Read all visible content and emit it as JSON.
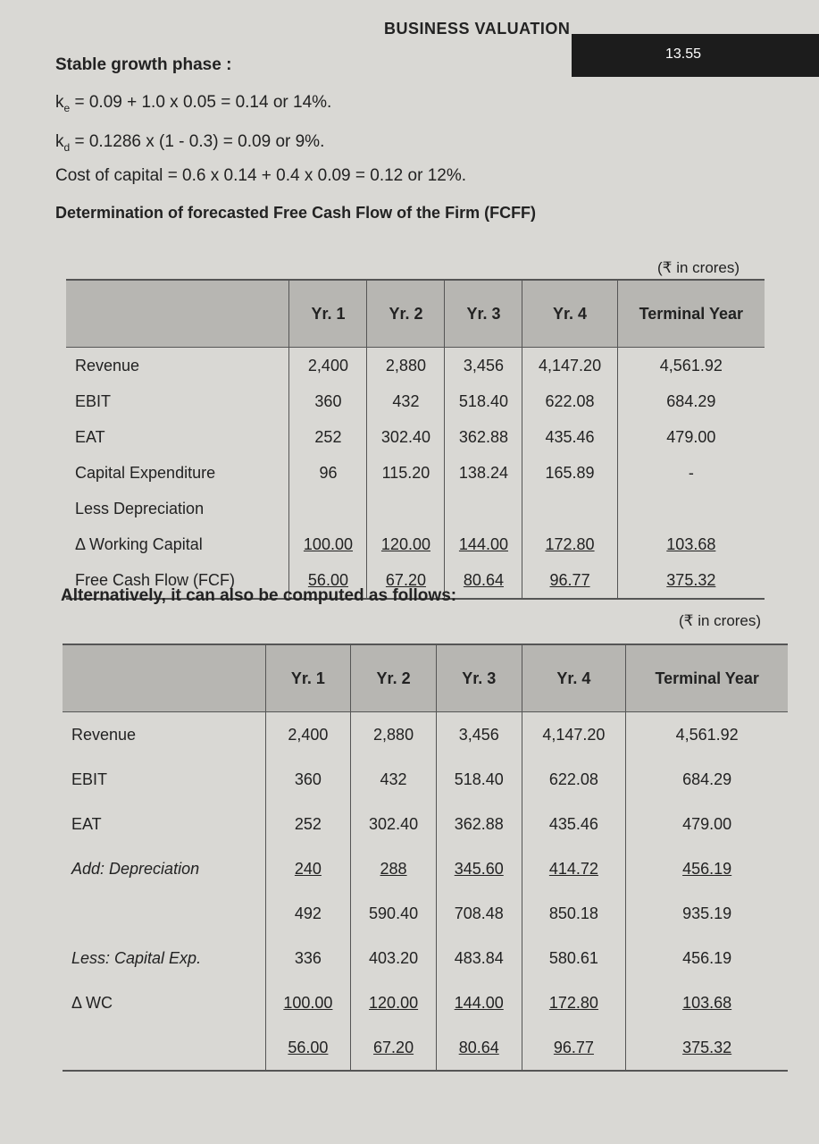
{
  "header": {
    "section": "BUSINESS VALUATION",
    "page_number": "13.55"
  },
  "phase_heading": "Stable growth phase :",
  "equations": [
    {
      "var": "k",
      "sub": "e",
      "rest": "= 0.09 + 1.0  x 0.05 = 0.14 or 14%."
    },
    {
      "var": "k",
      "sub": "d",
      "rest": "= 0.1286  x (1 - 0.3) = 0.09 or 9%."
    },
    {
      "var": "Cost of capital",
      "sub": null,
      "rest": "= 0.6 x 0.14 + 0.4 x 0.09 = 0.12 or 12%."
    }
  ],
  "fcff_title": "Determination of forecasted Free Cash Flow of the Firm (FCFF)",
  "table1": {
    "unit": "(₹ in crores)",
    "columns": [
      null,
      "Yr. 1",
      "Yr. 2",
      "Yr. 3",
      "Yr. 4",
      "Terminal Year"
    ],
    "rows": [
      [
        "Revenue",
        "2,400",
        "2,880",
        "3,456",
        "4,147.20",
        "4,561.92"
      ],
      [
        "EBIT",
        "360",
        "432",
        "518.40",
        "622.08",
        "684.29"
      ],
      [
        "EAT",
        "252",
        "302.40",
        "362.88",
        "435.46",
        "479.00"
      ],
      [
        "Capital Expenditure",
        "96",
        "115.20",
        "138.24",
        "165.89",
        "-"
      ],
      [
        "Less Depreciation",
        null,
        null,
        null,
        null,
        null
      ],
      [
        "Δ Working Capital",
        "100.00",
        "120.00",
        "144.00",
        "172.80",
        "103.68"
      ],
      [
        "Free Cash Flow (FCF)",
        "56.00",
        "67.20",
        "80.64",
        "96.77",
        "375.32"
      ]
    ],
    "underlined_rows": [
      5,
      6
    ]
  },
  "alternative_heading": "Alternatively, it can also be computed as follows:",
  "table2": {
    "unit": "(₹ in crores)",
    "columns": [
      null,
      "Yr. 1",
      "Yr. 2",
      "Yr. 3",
      "Yr. 4",
      "Terminal Year"
    ],
    "rows": [
      [
        "Revenue",
        "2,400",
        "2,880",
        "3,456",
        "4,147.20",
        "4,561.92"
      ],
      [
        "EBIT",
        "360",
        "432",
        "518.40",
        "622.08",
        "684.29"
      ],
      [
        "EAT",
        "252",
        "302.40",
        "362.88",
        "435.46",
        "479.00"
      ],
      [
        "Add: Depreciation",
        "240",
        "288",
        "345.60",
        "414.72",
        "456.19"
      ],
      [
        null,
        "492",
        "590.40",
        "708.48",
        "850.18",
        "935.19"
      ],
      [
        "Less: Capital Exp.",
        "336",
        "403.20",
        "483.84",
        "580.61",
        "456.19"
      ],
      [
        "Δ WC",
        "100.00",
        "120.00",
        "144.00",
        "172.80",
        "103.68"
      ],
      [
        null,
        "56.00",
        "67.20",
        "80.64",
        "96.77",
        "375.32"
      ]
    ],
    "underlined_rows": [
      3,
      6,
      7
    ],
    "italic_labels": [
      3,
      5
    ]
  }
}
